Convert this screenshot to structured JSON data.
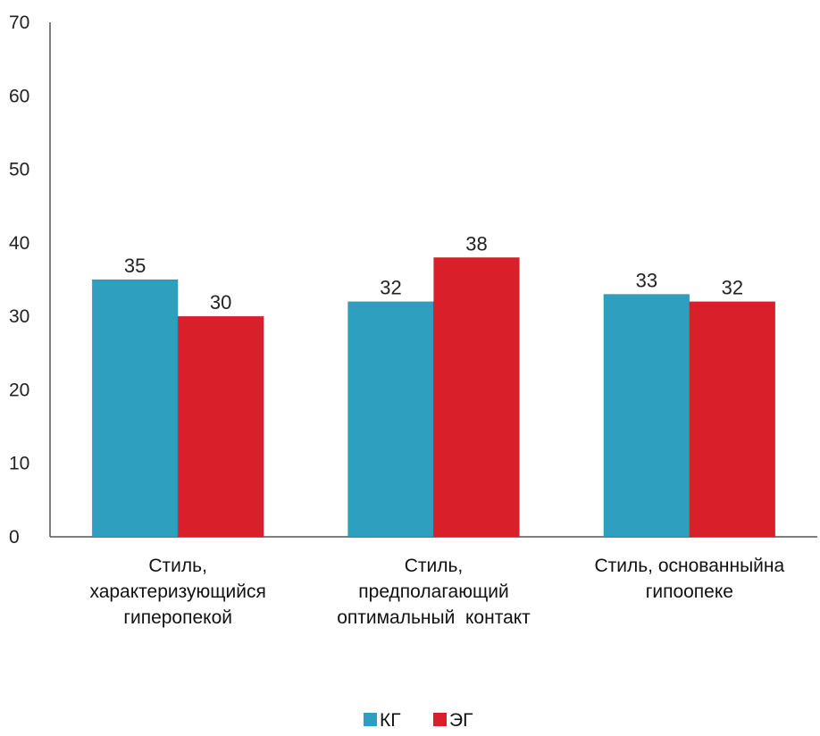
{
  "chart_data": {
    "type": "bar",
    "categories": [
      [
        "Стиль,",
        "характеризующийся",
        "гиперопекой"
      ],
      [
        "Стиль,",
        "предполагающий",
        "оптимальный  контакт"
      ],
      [
        "Стиль, основанныйна",
        "гипоопеке"
      ]
    ],
    "series": [
      {
        "name": "КГ",
        "color": "#2e9fbf",
        "values": [
          35,
          32,
          33
        ]
      },
      {
        "name": "ЭГ",
        "color": "#d9202a",
        "values": [
          30,
          38,
          32
        ]
      }
    ],
    "ylim": [
      0,
      70
    ],
    "yticks": [
      0,
      10,
      20,
      30,
      40,
      50,
      60,
      70
    ],
    "grid": false,
    "legend_position": "bottom-center"
  }
}
